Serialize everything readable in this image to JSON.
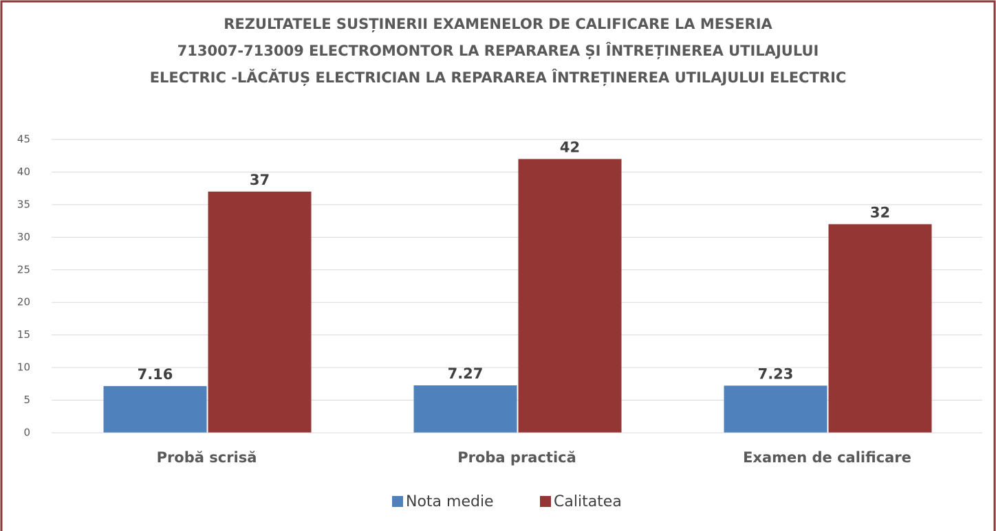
{
  "chart_data": {
    "type": "bar",
    "title": [
      "REZULTATELE SUSȚINERII  EXAMENELOR DE CALIFICARE LA MESERIA",
      "713007-713009 ELECTROMONTOR LA REPARAREA ȘI ÎNTREȚINEREA UTILAJULUI",
      "ELECTRIC -LĂCĂTUȘ ELECTRICIAN LA REPARAREA ÎNTREȚINEREA UTILAJULUI ELECTRIC"
    ],
    "categories": [
      "Probă scrisă",
      "Proba practică",
      "Examen de calificare"
    ],
    "series": [
      {
        "name": "Nota medie",
        "color": "#4f81bd",
        "values": [
          7.16,
          7.27,
          7.23
        ]
      },
      {
        "name": "Calitatea",
        "color": "#943634",
        "values": [
          37,
          42,
          32
        ]
      }
    ],
    "ylim": [
      0,
      45
    ],
    "yticks": [
      0,
      5,
      10,
      15,
      20,
      25,
      30,
      35,
      40,
      45
    ],
    "grid": true,
    "legend": "bottom"
  }
}
